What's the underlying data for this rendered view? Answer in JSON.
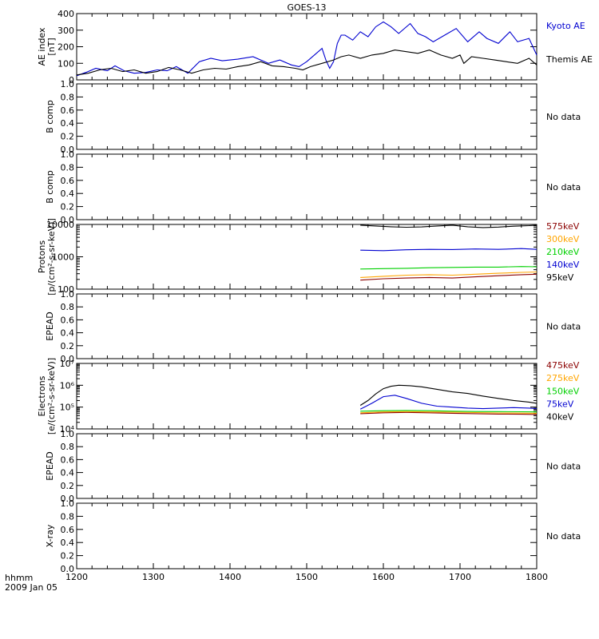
{
  "title": "GOES-13",
  "footer": {
    "format_label": "hhmm",
    "date_label": "2009 Jan 05"
  },
  "x_axis": {
    "ticks": [
      1200,
      1300,
      1400,
      1500,
      1600,
      1700,
      1800
    ],
    "xlim": [
      1200,
      1800
    ]
  },
  "chart_data": [
    {
      "type": "line",
      "ylabel": [
        "AE index",
        "[nT]"
      ],
      "ylim": [
        0,
        400
      ],
      "yticks": [
        0,
        100,
        200,
        300,
        400
      ],
      "series": [
        {
          "name": "Kyoto AE",
          "color": "#0000d0",
          "x": [
            1200,
            1212,
            1225,
            1240,
            1250,
            1262,
            1275,
            1290,
            1305,
            1318,
            1330,
            1345,
            1360,
            1375,
            1390,
            1410,
            1430,
            1450,
            1465,
            1480,
            1490,
            1500,
            1510,
            1520,
            1525,
            1530,
            1535,
            1540,
            1545,
            1550,
            1560,
            1570,
            1580,
            1590,
            1600,
            1610,
            1620,
            1635,
            1645,
            1655,
            1665,
            1680,
            1695,
            1710,
            1725,
            1735,
            1750,
            1765,
            1775,
            1790,
            1800
          ],
          "values": [
            25,
            45,
            70,
            55,
            85,
            55,
            40,
            45,
            60,
            55,
            80,
            40,
            110,
            130,
            115,
            125,
            140,
            100,
            120,
            90,
            80,
            110,
            150,
            190,
            120,
            70,
            110,
            220,
            270,
            270,
            240,
            290,
            260,
            320,
            350,
            320,
            280,
            340,
            280,
            260,
            230,
            270,
            310,
            230,
            290,
            250,
            220,
            290,
            230,
            250,
            150
          ]
        },
        {
          "name": "Themis AE",
          "color": "#000000",
          "x": [
            1200,
            1215,
            1230,
            1245,
            1260,
            1275,
            1290,
            1305,
            1320,
            1335,
            1350,
            1365,
            1380,
            1395,
            1410,
            1425,
            1440,
            1455,
            1470,
            1485,
            1495,
            1505,
            1520,
            1535,
            1545,
            1555,
            1570,
            1585,
            1600,
            1615,
            1630,
            1645,
            1660,
            1675,
            1690,
            1700,
            1705,
            1715,
            1730,
            1745,
            1760,
            1775,
            1790,
            1800
          ],
          "values": [
            30,
            40,
            60,
            70,
            50,
            60,
            40,
            50,
            75,
            60,
            40,
            60,
            70,
            65,
            80,
            90,
            110,
            85,
            80,
            70,
            60,
            80,
            100,
            120,
            140,
            150,
            130,
            150,
            160,
            180,
            170,
            160,
            180,
            150,
            130,
            150,
            100,
            140,
            130,
            120,
            110,
            100,
            130,
            90
          ]
        }
      ]
    },
    {
      "type": "line",
      "ylabel": [
        "B comp"
      ],
      "ylim": [
        0,
        1
      ],
      "yticks": [
        "0.0",
        "0.2",
        "0.4",
        "0.6",
        "0.8",
        "1.0"
      ],
      "status": "No data",
      "series": []
    },
    {
      "type": "line",
      "ylabel": [
        "B comp"
      ],
      "ylim": [
        0,
        1
      ],
      "yticks": [
        "0.0",
        "0.2",
        "0.4",
        "0.6",
        "0.8",
        "1.0"
      ],
      "status": "No data",
      "series": []
    },
    {
      "type": "line",
      "ylabel": [
        "Protons",
        "[p/(cm²-s-sr-keV)]"
      ],
      "yscale": "log",
      "ylim": [
        100,
        10000
      ],
      "yticks": [
        "100",
        "1000",
        "10000"
      ],
      "series": [
        {
          "name": "575keV",
          "color": "#8b0000",
          "x": [
            1570,
            1600,
            1630,
            1660,
            1690,
            1720,
            1750,
            1780,
            1800
          ],
          "values": [
            190,
            210,
            220,
            230,
            220,
            240,
            260,
            280,
            290
          ]
        },
        {
          "name": "300keV",
          "color": "#ffa500",
          "x": [
            1570,
            1600,
            1630,
            1660,
            1690,
            1720,
            1750,
            1780,
            1800
          ],
          "values": [
            230,
            250,
            270,
            280,
            270,
            290,
            310,
            330,
            340
          ]
        },
        {
          "name": "210keV",
          "color": "#00d000",
          "x": [
            1570,
            1600,
            1630,
            1660,
            1690,
            1720,
            1750,
            1780,
            1800
          ],
          "values": [
            420,
            430,
            440,
            460,
            470,
            480,
            480,
            500,
            490
          ]
        },
        {
          "name": "140keV",
          "color": "#0000d0",
          "x": [
            1570,
            1600,
            1630,
            1660,
            1690,
            1720,
            1750,
            1780,
            1800
          ],
          "values": [
            1600,
            1550,
            1650,
            1700,
            1680,
            1750,
            1700,
            1800,
            1700
          ]
        },
        {
          "name": "95keV",
          "color": "#000000",
          "x": [
            1570,
            1590,
            1610,
            1630,
            1650,
            1670,
            1690,
            1710,
            1730,
            1750,
            1770,
            1790,
            1800
          ],
          "values": [
            9500,
            9000,
            8500,
            8200,
            8400,
            9000,
            9500,
            8500,
            8000,
            8300,
            8800,
            9200,
            9500
          ]
        }
      ]
    },
    {
      "type": "line",
      "ylabel": [
        "EPEAD"
      ],
      "ylim": [
        0,
        1
      ],
      "yticks": [
        "0.0",
        "0.2",
        "0.4",
        "0.6",
        "0.8",
        "1.0"
      ],
      "status": "No data",
      "series": []
    },
    {
      "type": "line",
      "ylabel": [
        "Electrons",
        "[e/(cm²-s-sr-keV)]"
      ],
      "yscale": "log",
      "ylim": [
        10000,
        10000000
      ],
      "yticks": [
        "10⁴",
        "10⁵",
        "10⁶",
        "10⁷"
      ],
      "series": [
        {
          "name": "475keV",
          "color": "#8b0000",
          "x": [
            1570,
            1600,
            1630,
            1660,
            1690,
            1720,
            1750,
            1780,
            1800
          ],
          "values": [
            50000,
            55000,
            57000,
            55000,
            52000,
            50000,
            48000,
            47000,
            46000
          ]
        },
        {
          "name": "275keV",
          "color": "#ffa500",
          "x": [
            1570,
            1600,
            1630,
            1660,
            1690,
            1720,
            1750,
            1780,
            1800
          ],
          "values": [
            55000,
            60000,
            62000,
            60000,
            58000,
            56000,
            54000,
            53000,
            52000
          ]
        },
        {
          "name": "150keV",
          "color": "#00d000",
          "x": [
            1570,
            1600,
            1630,
            1660,
            1690,
            1720,
            1750,
            1780,
            1800
          ],
          "values": [
            65000,
            68000,
            70000,
            68000,
            65000,
            63000,
            62000,
            61000,
            60000
          ]
        },
        {
          "name": "75keV",
          "color": "#0000d0",
          "x": [
            1570,
            1585,
            1600,
            1615,
            1630,
            1650,
            1670,
            1690,
            1710,
            1730,
            1750,
            1770,
            1790,
            1800
          ],
          "values": [
            80000,
            150000,
            300000,
            350000,
            250000,
            150000,
            110000,
            100000,
            90000,
            85000,
            90000,
            95000,
            90000,
            85000
          ]
        },
        {
          "name": "40keV",
          "color": "#000000",
          "x": [
            1570,
            1580,
            1590,
            1600,
            1610,
            1620,
            1635,
            1650,
            1670,
            1690,
            1710,
            1730,
            1750,
            1770,
            1790,
            1800
          ],
          "values": [
            120000,
            200000,
            400000,
            700000,
            900000,
            1000000,
            950000,
            850000,
            650000,
            500000,
            420000,
            320000,
            250000,
            200000,
            170000,
            150000
          ]
        }
      ]
    },
    {
      "type": "line",
      "ylabel": [
        "EPEAD"
      ],
      "ylim": [
        0,
        1
      ],
      "yticks": [
        "0.0",
        "0.2",
        "0.4",
        "0.6",
        "0.8",
        "1.0"
      ],
      "status": "No data",
      "series": []
    },
    {
      "type": "line",
      "ylabel": [
        "X-ray"
      ],
      "ylim": [
        0,
        1
      ],
      "yticks": [
        "0.0",
        "0.2",
        "0.4",
        "0.6",
        "0.8",
        "1.0"
      ],
      "status": "No data",
      "series": []
    }
  ]
}
